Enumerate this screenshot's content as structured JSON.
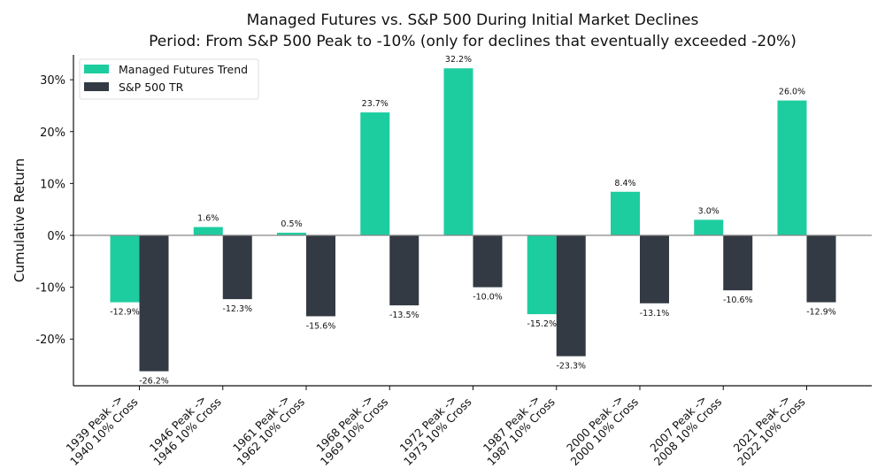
{
  "chart_data": {
    "type": "bar",
    "title": "Managed Futures vs. S&P 500 During Initial Market Declines",
    "subtitle": "Period: From S&P 500 Peak to -10% (only for declines that eventually exceeded -20%)",
    "xlabel": "",
    "ylabel": "Cumulative Return",
    "ylim": [
      -29,
      34.8
    ],
    "yticks": [
      -20,
      -10,
      0,
      10,
      20,
      30
    ],
    "ytick_labels": [
      "-20%",
      "-10%",
      "0%",
      "10%",
      "20%",
      "30%"
    ],
    "grid": false,
    "legend_position": "top-left",
    "categories": [
      [
        "1939 Peak ->",
        "1940 10% Cross"
      ],
      [
        "1946 Peak ->",
        "1946 10% Cross"
      ],
      [
        "1961 Peak ->",
        "1962 10% Cross"
      ],
      [
        "1968 Peak ->",
        "1969 10% Cross"
      ],
      [
        "1972 Peak ->",
        "1973 10% Cross"
      ],
      [
        "1987 Peak ->",
        "1987 10% Cross"
      ],
      [
        "2000 Peak ->",
        "2000 10% Cross"
      ],
      [
        "2007 Peak ->",
        "2008 10% Cross"
      ],
      [
        "2021 Peak ->",
        "2022 10% Cross"
      ]
    ],
    "series": [
      {
        "name": "Managed Futures Trend",
        "color": "#1dcd9f",
        "values": [
          -12.9,
          1.6,
          0.5,
          23.7,
          32.2,
          -15.2,
          8.4,
          3.0,
          26.0
        ],
        "labels": [
          "-12.9%",
          "1.6%",
          "0.5%",
          "23.7%",
          "32.2%",
          "-15.2%",
          "8.4%",
          "3.0%",
          "26.0%"
        ]
      },
      {
        "name": "S&P 500 TR",
        "color": "#333a44",
        "values": [
          -26.2,
          -12.3,
          -15.6,
          -13.5,
          -10.0,
          -23.3,
          -13.1,
          -10.6,
          -12.9
        ],
        "labels": [
          "-26.2%",
          "-12.3%",
          "-15.6%",
          "-13.5%",
          "-10.0%",
          "-23.3%",
          "-13.1%",
          "-10.6%",
          "-12.9%"
        ]
      }
    ]
  }
}
